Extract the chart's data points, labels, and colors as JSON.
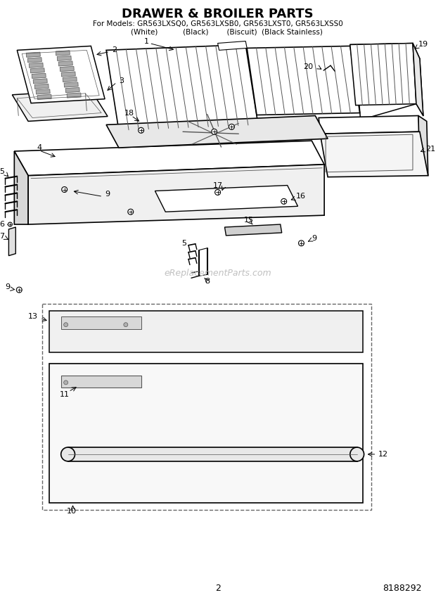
{
  "title": "DRAWER & BROILER PARTS",
  "subtitle1": "For Models: GR563LXSQ0, GR563LXSB0, GR563LXST0, GR563LXSS0",
  "subtitle2": "        (White)           (Black)        (Biscuit)  (Black Stainless)",
  "page_number": "2",
  "part_number": "8188292",
  "watermark": "eReplacementParts.com",
  "bg_color": "#ffffff"
}
